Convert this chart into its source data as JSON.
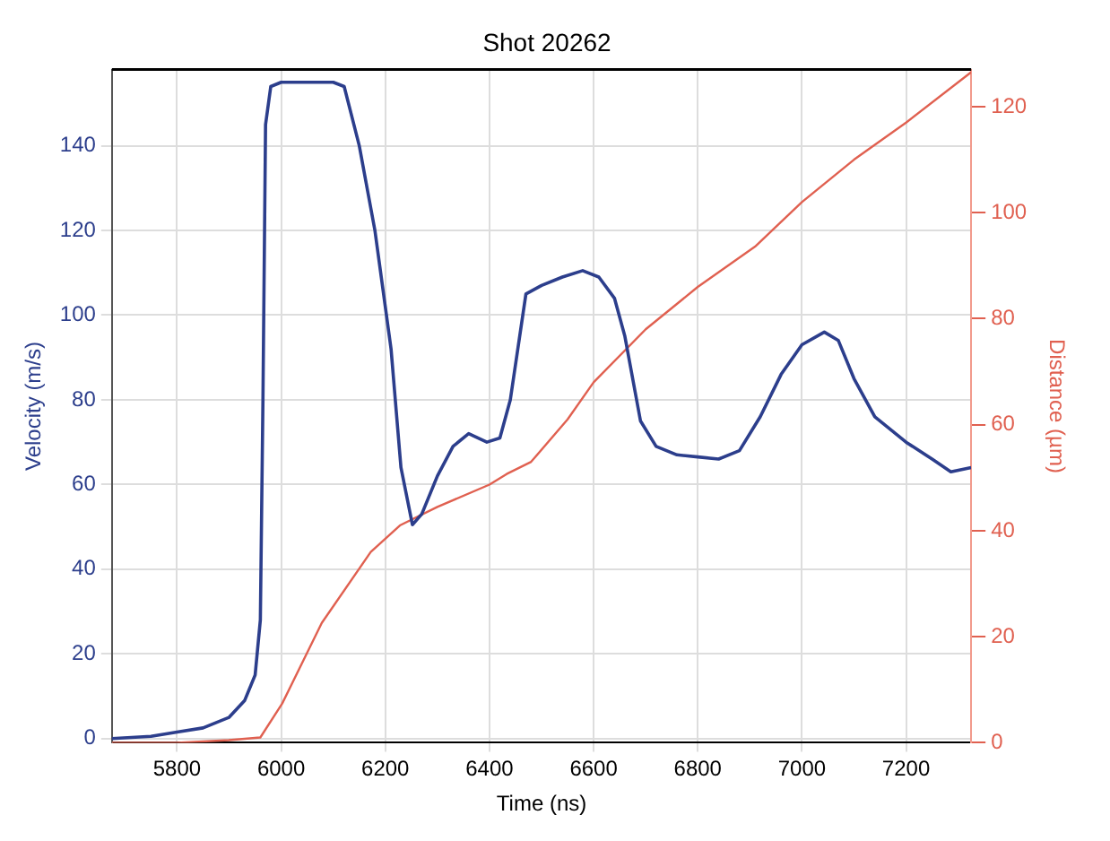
{
  "chart_data": {
    "type": "line",
    "title": "Shot 20262",
    "xlabel": "Time (ns)",
    "ylabel": "Velocity (m/s)",
    "y2label": "Distance (µm)",
    "xlim": [
      5675,
      7325
    ],
    "xticks": [
      5800,
      6000,
      6200,
      6400,
      6600,
      6800,
      7000,
      7200
    ],
    "ylim": [
      -1,
      158
    ],
    "yticks": [
      0,
      20,
      40,
      60,
      80,
      100,
      120,
      140
    ],
    "y2lim": [
      0,
      127
    ],
    "y2ticks": [
      0,
      20,
      40,
      60,
      80,
      100,
      120
    ],
    "grid": true,
    "legend": false,
    "marker": "none",
    "line_style": "solid",
    "series": [
      {
        "color": "#2c3e8c",
        "x": [
          5675,
          5750,
          5800,
          5850,
          5900,
          5930,
          5950,
          5960,
          5965,
          5970,
          5980,
          6000,
          6050,
          6100,
          6121,
          6150,
          6180,
          6211,
          6230,
          6252,
          6270,
          6300,
          6330,
          6360,
          6395,
          6420,
          6440,
          6470,
          6500,
          6540,
          6579,
          6610,
          6640,
          6660,
          6690,
          6720,
          6760,
          6800,
          6840,
          6880,
          6920,
          6960,
          7000,
          7043,
          7070,
          7100,
          7140,
          7200,
          7250,
          7286,
          7325
        ],
        "values": [
          0,
          0.5,
          1.5,
          2.5,
          5,
          9,
          15,
          28,
          80,
          145,
          154,
          155,
          155,
          155,
          154,
          140,
          120,
          92,
          64,
          50.5,
          53,
          62,
          69,
          72,
          70,
          71,
          80,
          105,
          107,
          109,
          110.5,
          109,
          104,
          95,
          75,
          69,
          67,
          66.5,
          66,
          68,
          76,
          86,
          93,
          96,
          94,
          85,
          76,
          70,
          66,
          63,
          64
        ]
      },
      {
        "color": "#e06050",
        "axis": "y2",
        "x": [
          5675,
          5800,
          5900,
          5960,
          6002,
          6078,
          6172,
          6228,
          6300,
          6400,
          6433,
          6480,
          6550,
          6600,
          6700,
          6800,
          6910,
          7000,
          7100,
          7200,
          7325
        ],
        "values": [
          0,
          0,
          0.5,
          1,
          7.4,
          22.6,
          36,
          41,
          44.5,
          48.7,
          50.7,
          53,
          61,
          68,
          78,
          86,
          93.6,
          102,
          110,
          117,
          126.5
        ]
      }
    ]
  }
}
